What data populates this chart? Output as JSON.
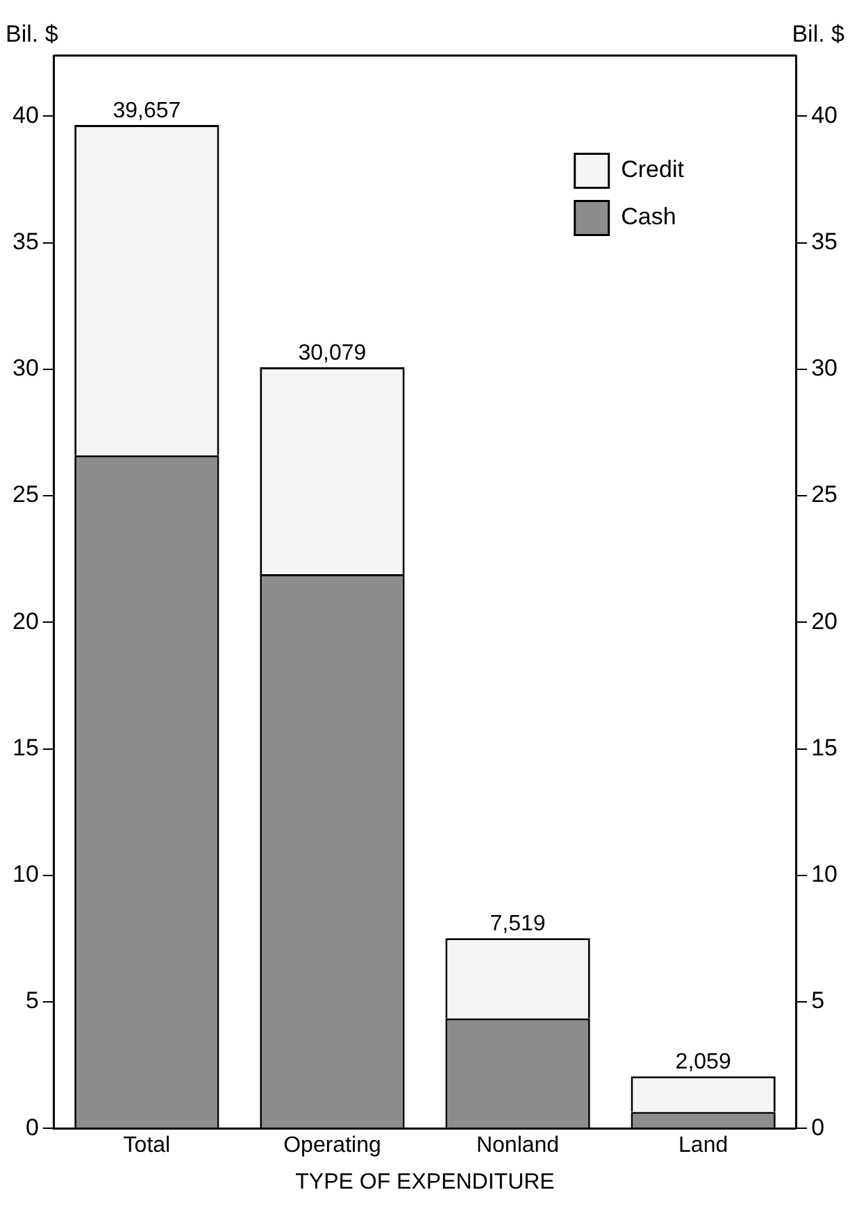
{
  "chart_data": {
    "type": "bar",
    "stacked": true,
    "xlabel": "TYPE OF EXPENDITURE",
    "ylabel": "Bil. $",
    "y2label": "Bil. $",
    "categories": [
      "Total",
      "Operating",
      "Nonland",
      "Land"
    ],
    "series": [
      {
        "name": "Cash",
        "color": "#8c8c8c",
        "values": [
          26.6,
          21.9,
          4.35,
          0.65
        ]
      },
      {
        "name": "Credit",
        "color": "#f4f4f4",
        "values": [
          13.057,
          8.179,
          3.169,
          1.409
        ]
      }
    ],
    "totals": [
      "39,657",
      "30,079",
      "7,519",
      "2,059"
    ],
    "ylim": [
      0,
      42.4
    ],
    "yticks": [
      0,
      5,
      10,
      15,
      20,
      25,
      30,
      35,
      40
    ],
    "y2lim": [
      0,
      42.4
    ],
    "y2ticks": [
      0,
      5,
      10,
      15,
      20,
      25,
      30,
      35,
      40
    ],
    "legend": "top right",
    "grid": false
  }
}
